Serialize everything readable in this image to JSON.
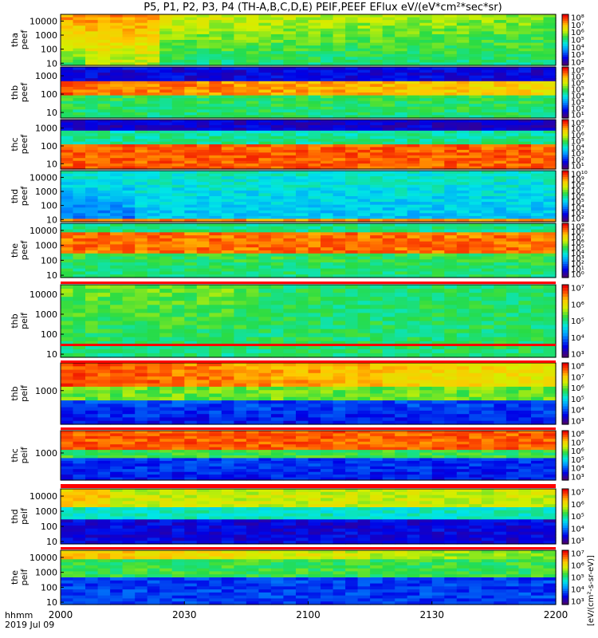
{
  "title": "P5, P1, P2, P3, P4 (TH-A,B,C,D,E) PEIF,PEEF EFlux eV/(eV*cm²*sec*sr)",
  "colorbar_units": "[eV/(cm²-s-sr-eV)]",
  "footer": {
    "tlabel": "hhmm",
    "date": "2019 Jul 09"
  },
  "colors": {
    "border": "#000000",
    "background": "#ffffff",
    "separator": "#ff0000"
  },
  "chart_data": {
    "type": "heatmap",
    "x_axis": {
      "range": [
        "2000",
        "2200"
      ],
      "range_minutes": [
        0,
        120
      ],
      "ticks": [
        "2000",
        "2030",
        "2100",
        "2130",
        "2200"
      ],
      "tick_minutes": [
        0,
        30,
        60,
        90,
        120
      ]
    },
    "colormap": "rainbow (purple-blue-cyan-green-yellow-red)",
    "panels": [
      {
        "id": "tha-peef",
        "line1": "tha",
        "line2": "peef",
        "species": "electron",
        "yticks": [
          "10000",
          "1000",
          "100",
          "10"
        ],
        "ytick_values": [
          10000,
          1000,
          100,
          10
        ],
        "ylim": [
          7,
          30000
        ],
        "yscale": "log",
        "cbar_ticks": [
          "10⁸",
          "10⁷",
          "10⁶",
          "10⁵",
          "10⁴",
          "10³",
          "10²"
        ]
      },
      {
        "id": "thb-peef",
        "line1": "thb",
        "line2": "peef",
        "species": "electron",
        "yticks": [
          "1000",
          "100",
          "10"
        ],
        "ytick_values": [
          1000,
          100,
          10
        ],
        "ylim": [
          5,
          3000
        ],
        "yscale": "log",
        "cbar_ticks": [
          "10⁸",
          "10⁷",
          "10⁶",
          "10⁵",
          "10⁴",
          "10³",
          "10²",
          "10¹"
        ]
      },
      {
        "id": "thc-peef",
        "line1": "thc",
        "line2": "peef",
        "species": "electron",
        "yticks": [
          "1000",
          "100",
          "10"
        ],
        "ytick_values": [
          1000,
          100,
          10
        ],
        "ylim": [
          5,
          3000
        ],
        "yscale": "log",
        "cbar_ticks": [
          "10⁸",
          "10⁷",
          "10⁶",
          "10⁵",
          "10⁴",
          "10³",
          "10²",
          "10¹"
        ]
      },
      {
        "id": "thd-peef",
        "line1": "thd",
        "line2": "peef",
        "species": "electron",
        "yticks": [
          "10000",
          "1000",
          "100",
          "10"
        ],
        "ytick_values": [
          10000,
          1000,
          100,
          10
        ],
        "ylim": [
          7,
          30000
        ],
        "yscale": "log",
        "cbar_ticks": [
          "10¹⁰",
          "10⁹",
          "10⁸",
          "10⁷",
          "10⁶",
          "10⁵",
          "10⁴",
          "10³",
          "10²"
        ]
      },
      {
        "id": "the-peef",
        "line1": "the",
        "line2": "peef",
        "species": "electron",
        "yticks": [
          "10000",
          "1000",
          "100",
          "10"
        ],
        "ytick_values": [
          10000,
          1000,
          100,
          10
        ],
        "ylim": [
          7,
          30000
        ],
        "yscale": "log",
        "cbar_ticks": [
          "10⁹",
          "10⁸",
          "10⁷",
          "10⁶",
          "10⁵",
          "10⁴",
          "10³",
          "10²",
          "10¹",
          "10⁰"
        ]
      },
      {
        "id": "thb-peif-a",
        "line1": "thb",
        "line2": "peif",
        "species": "ion",
        "yticks": [
          "10000",
          "1000",
          "100",
          "10"
        ],
        "ytick_values": [
          10000,
          1000,
          100,
          10
        ],
        "ylim": [
          7,
          30000
        ],
        "yscale": "log",
        "cbar_ticks": [
          "10⁷",
          "10⁶",
          "10⁵",
          "10⁴",
          "10³"
        ]
      },
      {
        "id": "thb-peif-b",
        "line1": "thb",
        "line2": "peif",
        "species": "ion",
        "yticks": [
          "1000"
        ],
        "ytick_values": [
          1000
        ],
        "ylim": [
          20,
          25000
        ],
        "yscale": "log",
        "cbar_ticks": [
          "10⁸",
          "10⁷",
          "10⁶",
          "10⁵",
          "10⁴",
          "10³"
        ]
      },
      {
        "id": "thc-peif",
        "line1": "thc",
        "line2": "peif",
        "species": "ion",
        "yticks": [
          "1000"
        ],
        "ytick_values": [
          1000
        ],
        "ylim": [
          20,
          25000
        ],
        "yscale": "log",
        "cbar_ticks": [
          "10⁸",
          "10⁷",
          "10⁶",
          "10⁵",
          "10⁴",
          "10³"
        ]
      },
      {
        "id": "thd-peif",
        "line1": "thd",
        "line2": "peif",
        "species": "ion",
        "yticks": [
          "10000",
          "1000",
          "100",
          "10"
        ],
        "ytick_values": [
          10000,
          1000,
          100,
          10
        ],
        "ylim": [
          7,
          30000
        ],
        "yscale": "log",
        "cbar_ticks": [
          "10⁷",
          "10⁶",
          "10⁵",
          "10⁴",
          "10³"
        ]
      },
      {
        "id": "the-peif",
        "line1": "the",
        "line2": "peif",
        "species": "ion",
        "yticks": [
          "10000",
          "1000",
          "100",
          "10"
        ],
        "ytick_values": [
          10000,
          1000,
          100,
          10
        ],
        "ylim": [
          7,
          30000
        ],
        "yscale": "log",
        "cbar_ticks": [
          "10⁷",
          "10⁶",
          "10⁵",
          "10⁴",
          "10³"
        ]
      }
    ]
  }
}
